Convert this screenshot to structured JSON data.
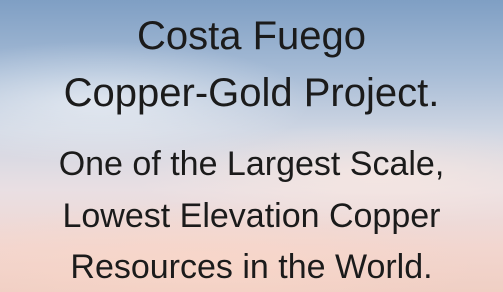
{
  "title": {
    "lines": [
      "Costa Fuego",
      "Copper-Gold Project."
    ]
  },
  "subtitle": {
    "lines": [
      "One of the Largest Scale,",
      "Lowest Elevation Copper",
      "Resources in the World."
    ]
  }
}
